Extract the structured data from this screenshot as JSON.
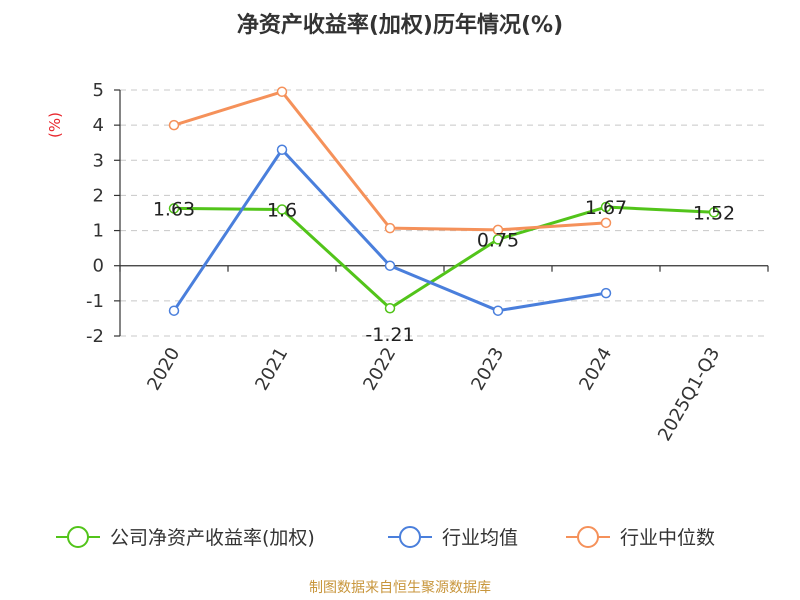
{
  "chart_data": {
    "type": "line",
    "title": "净资产收益率(加权)历年情况(%)",
    "ylabel": "(%)",
    "xlabel": "",
    "categories": [
      "2020",
      "2021",
      "2022",
      "2023",
      "2024",
      "2025Q1-Q3"
    ],
    "ylim": [
      -2,
      5
    ],
    "yticks": [
      5,
      4,
      3,
      2,
      1,
      0,
      -1,
      -2
    ],
    "grid": true,
    "legend_position": "bottom",
    "series": [
      {
        "name": "公司净资产收益率(加权)",
        "color": "#52c41a",
        "values": [
          1.63,
          1.6,
          -1.21,
          0.75,
          1.67,
          1.52
        ],
        "labels": [
          "1.63",
          "1.6",
          "-1.21",
          "0.75",
          "1.67",
          "1.52"
        ]
      },
      {
        "name": "行业均值",
        "color": "#4a7fdc",
        "values": [
          -1.28,
          3.3,
          0.0,
          -1.28,
          -0.78,
          null
        ]
      },
      {
        "name": "行业中位数",
        "color": "#f5915a",
        "values": [
          4.0,
          4.95,
          1.07,
          1.02,
          1.22,
          null
        ]
      }
    ]
  },
  "source_text": "制图数据来自恒生聚源数据库"
}
